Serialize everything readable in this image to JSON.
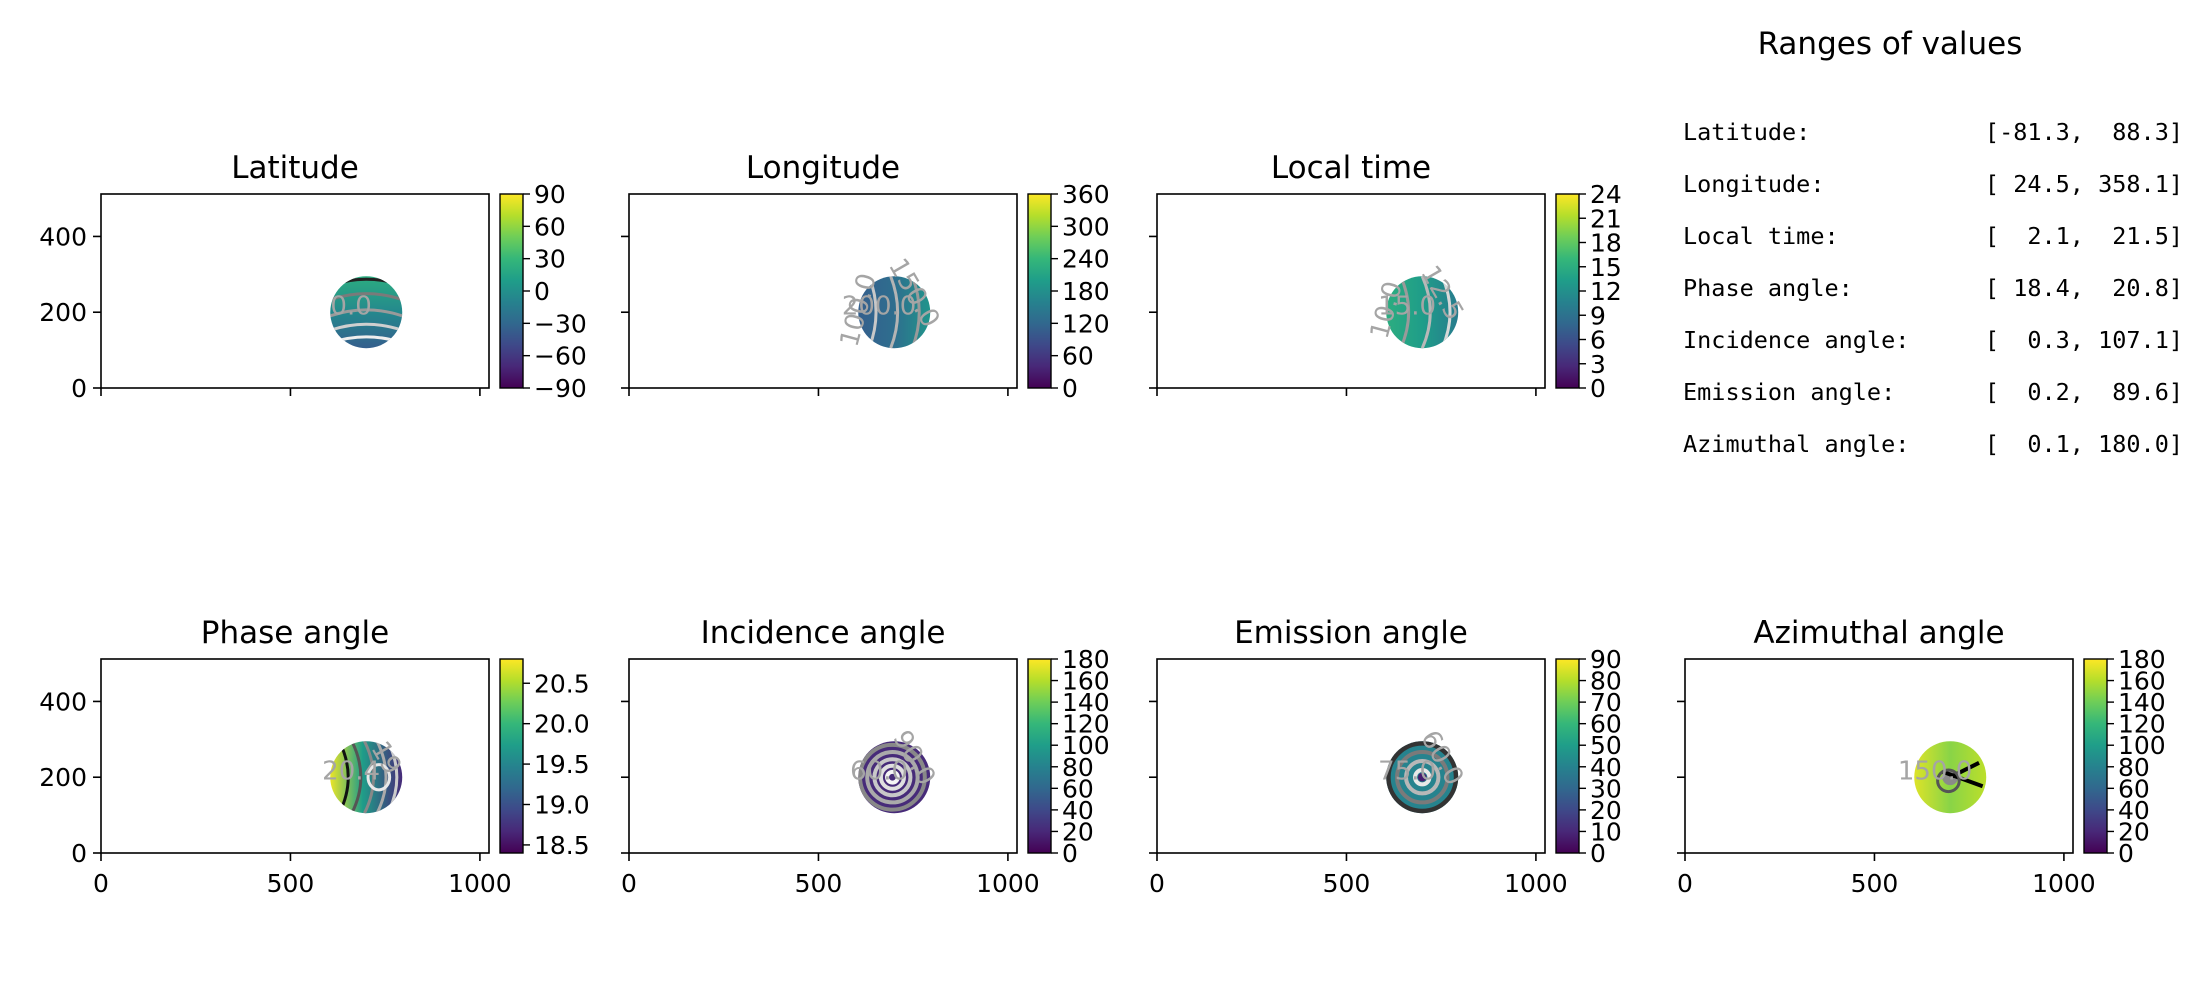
{
  "chart_data": [
    {
      "type": "heatmap",
      "title": "Latitude",
      "xlim": [
        0,
        1024
      ],
      "ylim": [
        0,
        512
      ],
      "xticks": [
        0,
        500,
        1000
      ],
      "yticks": [
        0,
        200,
        400
      ],
      "show_xticklabels": false,
      "show_yticklabels": true,
      "colorbar": {
        "min": -90,
        "max": 90,
        "ticks": [
          "90",
          "60",
          "30",
          "0",
          "−30",
          "−60",
          "−90"
        ],
        "tick_values": [
          90,
          60,
          30,
          0,
          -30,
          -60,
          -90
        ]
      },
      "disk": {
        "center": [
          700,
          200
        ],
        "radius": 95
      },
      "field": "latitude",
      "contour_labels": [
        "0.0"
      ]
    },
    {
      "type": "heatmap",
      "title": "Longitude",
      "xlim": [
        0,
        1024
      ],
      "ylim": [
        0,
        512
      ],
      "xticks": [
        0,
        500,
        1000
      ],
      "yticks": [
        0,
        200,
        400
      ],
      "show_xticklabels": false,
      "show_yticklabels": false,
      "colorbar": {
        "min": 0,
        "max": 360,
        "ticks": [
          "360",
          "300",
          "240",
          "180",
          "120",
          "60",
          "0"
        ],
        "tick_values": [
          360,
          300,
          240,
          180,
          120,
          60,
          0
        ]
      },
      "disk": {
        "center": [
          700,
          200
        ],
        "radius": 95
      },
      "field": "longitude",
      "contour_labels": [
        "200.0",
        "150.0",
        "100.0"
      ]
    },
    {
      "type": "heatmap",
      "title": "Local time",
      "xlim": [
        0,
        1024
      ],
      "ylim": [
        0,
        512
      ],
      "xticks": [
        0,
        500,
        1000
      ],
      "yticks": [
        0,
        200,
        400
      ],
      "show_xticklabels": false,
      "show_yticklabels": false,
      "colorbar": {
        "min": 0,
        "max": 24,
        "ticks": [
          "24",
          "21",
          "18",
          "15",
          "12",
          "9",
          "6",
          "3",
          "0"
        ],
        "tick_values": [
          24,
          21,
          18,
          15,
          12,
          9,
          6,
          3,
          0
        ]
      },
      "disk": {
        "center": [
          700,
          200
        ],
        "radius": 95
      },
      "field": "localtime",
      "contour_labels": [
        "15.0",
        "12.5",
        "10.0"
      ]
    },
    {
      "type": "heatmap",
      "title": "Phase angle",
      "xlim": [
        0,
        1024
      ],
      "ylim": [
        0,
        512
      ],
      "xticks": [
        0,
        500,
        1000
      ],
      "yticks": [
        0,
        200,
        400
      ],
      "show_xticklabels": true,
      "show_yticklabels": true,
      "colorbar": {
        "min": 18.4,
        "max": 20.8,
        "ticks": [
          "20.5",
          "20.0",
          "19.5",
          "19.0",
          "18.5"
        ],
        "tick_values": [
          20.5,
          20.0,
          19.5,
          19.0,
          18.5
        ]
      },
      "disk": {
        "center": [
          700,
          200
        ],
        "radius": 95
      },
      "field": "phase",
      "contour_labels": [
        "20.4",
        "19"
      ]
    },
    {
      "type": "heatmap",
      "title": "Incidence angle",
      "xlim": [
        0,
        1024
      ],
      "ylim": [
        0,
        512
      ],
      "xticks": [
        0,
        500,
        1000
      ],
      "yticks": [
        0,
        200,
        400
      ],
      "show_xticklabels": true,
      "show_yticklabels": false,
      "colorbar": {
        "min": 0,
        "max": 180,
        "ticks": [
          "180",
          "160",
          "140",
          "120",
          "100",
          "80",
          "60",
          "40",
          "20",
          "0"
        ],
        "tick_values": [
          180,
          160,
          140,
          120,
          100,
          80,
          60,
          40,
          20,
          0
        ]
      },
      "disk": {
        "center": [
          700,
          200
        ],
        "radius": 95
      },
      "field": "incidence",
      "contour_labels": [
        "60.0",
        "90.0"
      ]
    },
    {
      "type": "heatmap",
      "title": "Emission angle",
      "xlim": [
        0,
        1024
      ],
      "ylim": [
        0,
        512
      ],
      "xticks": [
        0,
        500,
        1000
      ],
      "yticks": [
        0,
        200,
        400
      ],
      "show_xticklabels": true,
      "show_yticklabels": false,
      "colorbar": {
        "min": 0,
        "max": 90,
        "ticks": [
          "90",
          "80",
          "70",
          "60",
          "50",
          "40",
          "30",
          "20",
          "10",
          "0"
        ],
        "tick_values": [
          90,
          80,
          70,
          60,
          50,
          40,
          30,
          20,
          10,
          0
        ]
      },
      "disk": {
        "center": [
          700,
          200
        ],
        "radius": 95
      },
      "field": "emission",
      "contour_labels": [
        "75.0",
        "60.0"
      ]
    },
    {
      "type": "heatmap",
      "title": "Azimuthal angle",
      "xlim": [
        0,
        1024
      ],
      "ylim": [
        0,
        512
      ],
      "xticks": [
        0,
        500,
        1000
      ],
      "yticks": [
        0,
        200,
        400
      ],
      "show_xticklabels": true,
      "show_yticklabels": false,
      "colorbar": {
        "min": 0,
        "max": 180,
        "ticks": [
          "180",
          "160",
          "140",
          "120",
          "100",
          "80",
          "60",
          "40",
          "20",
          "0"
        ],
        "tick_values": [
          180,
          160,
          140,
          120,
          100,
          80,
          60,
          40,
          20,
          0
        ]
      },
      "disk": {
        "center": [
          700,
          200
        ],
        "radius": 95
      },
      "field": "azimuth",
      "contour_labels": [
        "150.0"
      ]
    }
  ],
  "ranges_panel": {
    "title": "Ranges of values",
    "rows": [
      {
        "label": "Latitude:",
        "value": "[-81.3,  88.3]"
      },
      {
        "label": "Longitude:",
        "value": "[ 24.5, 358.1]"
      },
      {
        "label": "Local time:",
        "value": "[  2.1,  21.5]"
      },
      {
        "label": "Phase angle:",
        "value": "[ 18.4,  20.8]"
      },
      {
        "label": "Incidence angle:",
        "value": "[  0.3, 107.1]"
      },
      {
        "label": "Emission angle:",
        "value": "[  0.2,  89.6]"
      },
      {
        "label": "Azimuthal angle:",
        "value": "[  0.1, 180.0]"
      }
    ]
  }
}
